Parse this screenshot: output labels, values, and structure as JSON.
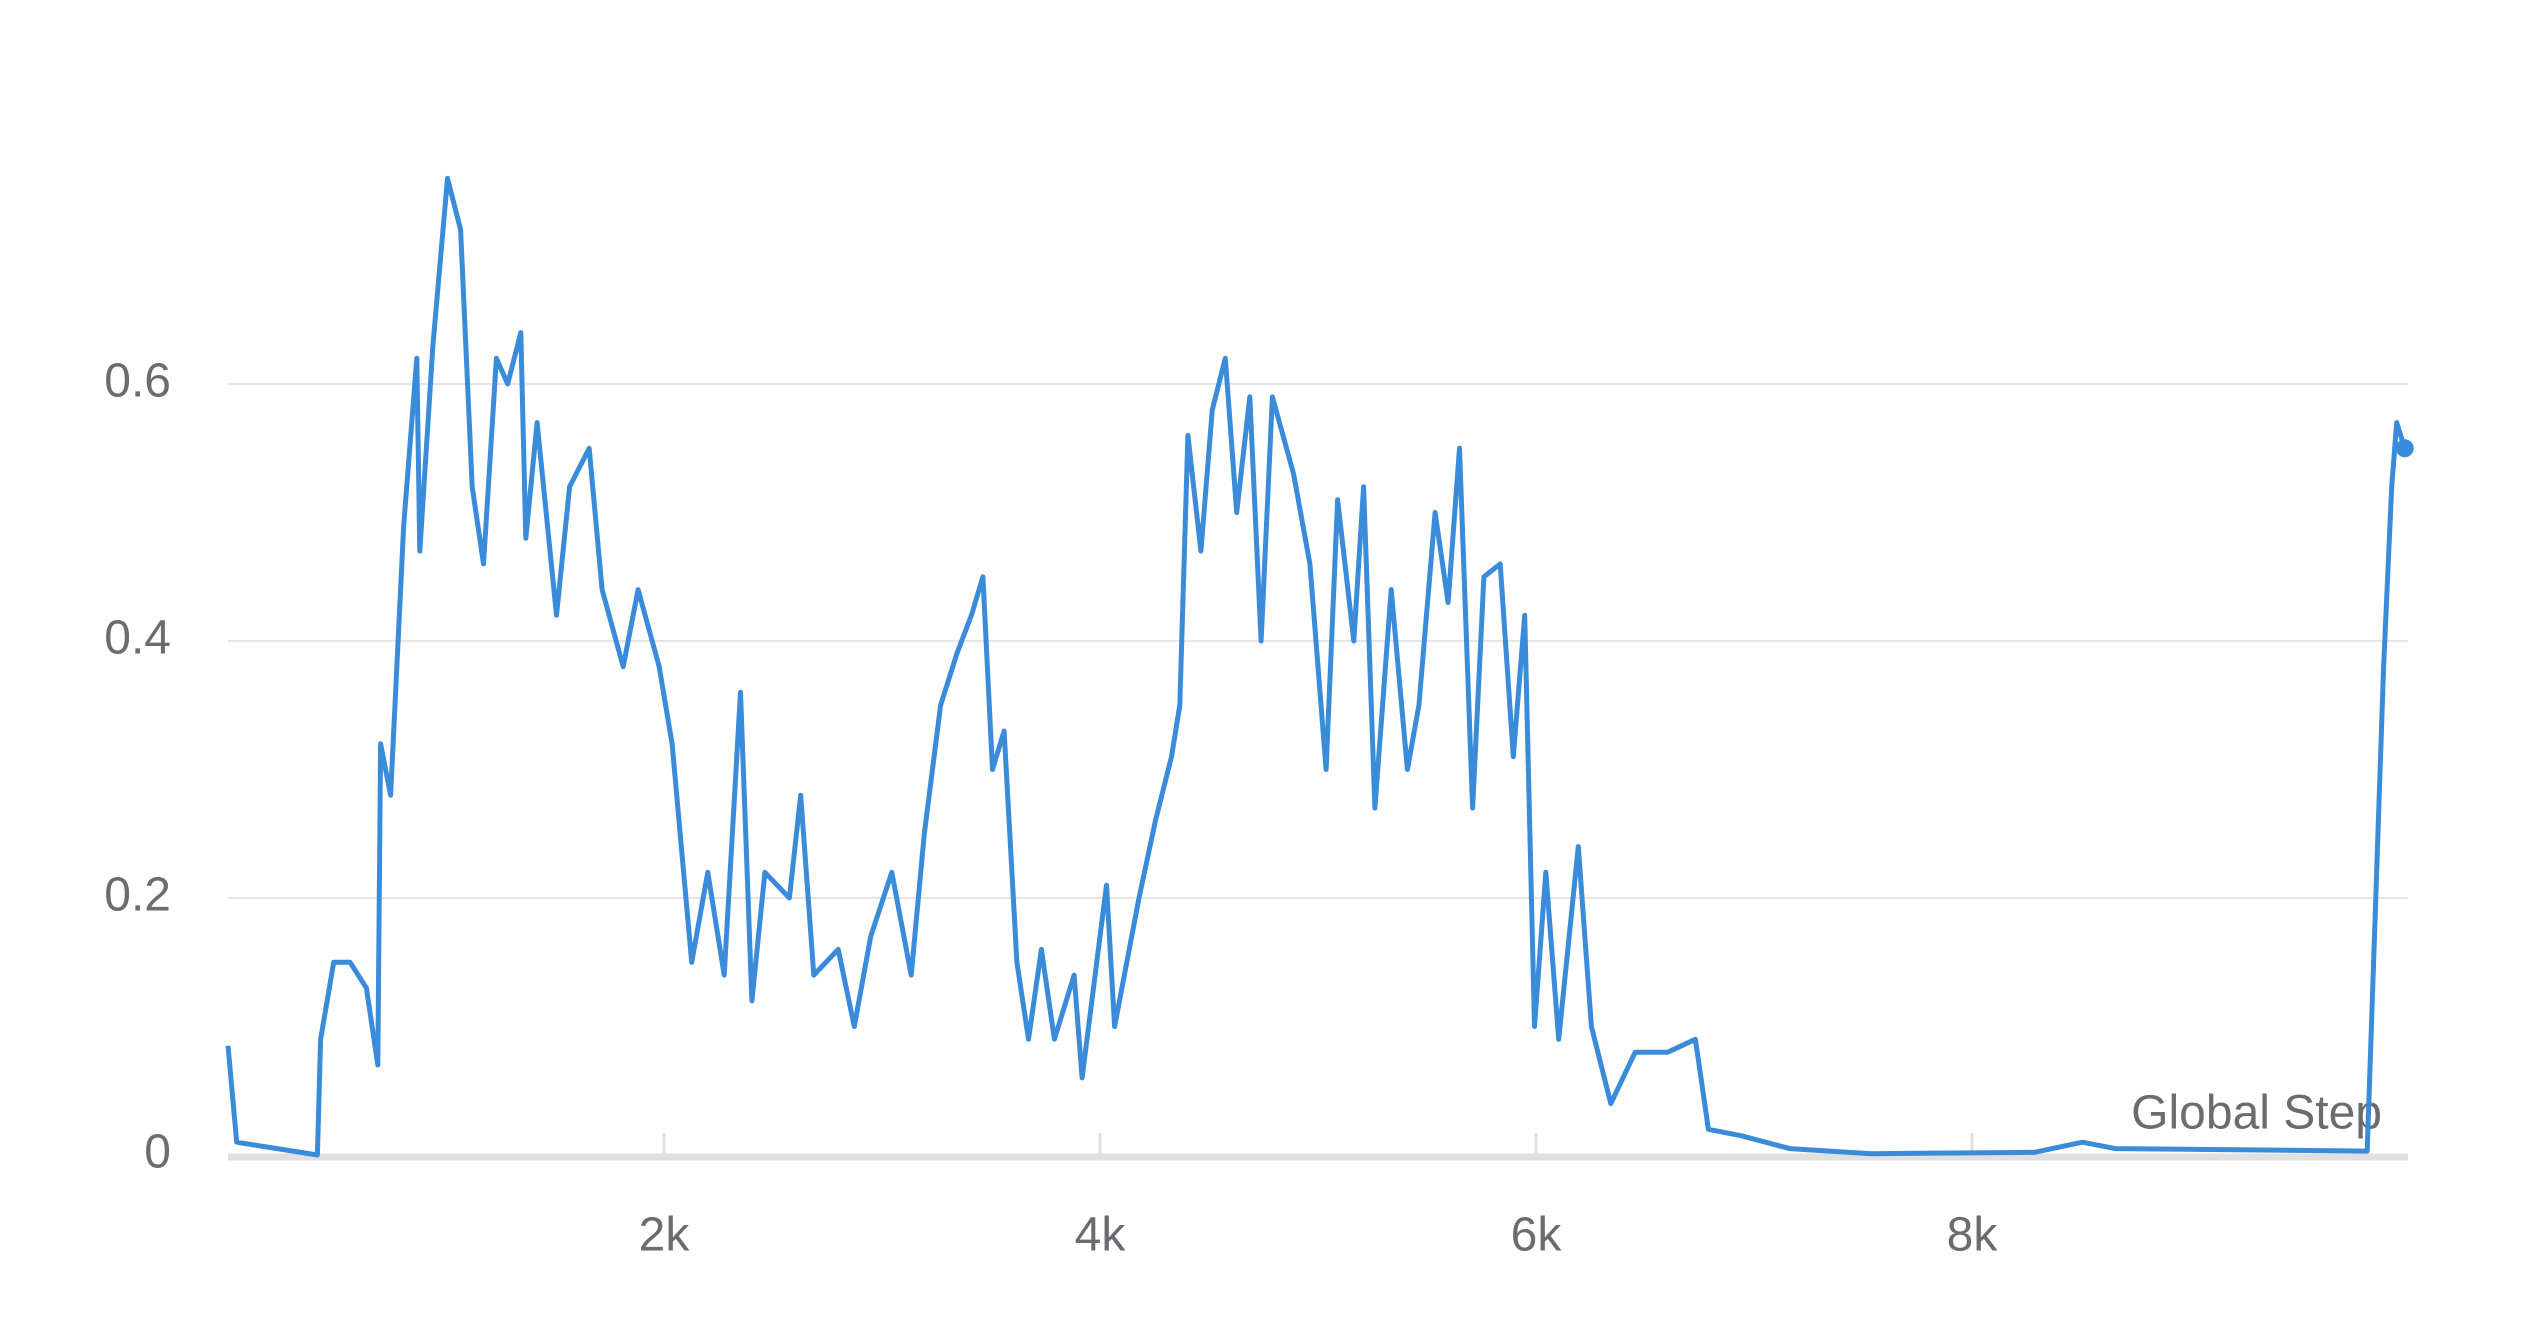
{
  "chart_data": {
    "type": "line",
    "x_label": "Global Step",
    "x": [
      0,
      40,
      410,
      425,
      485,
      560,
      635,
      687,
      700,
      746,
      806,
      866,
      880,
      940,
      1007,
      1067,
      1120,
      1172,
      1231,
      1283,
      1343,
      1366,
      1418,
      1507,
      1567,
      1657,
      1716,
      1813,
      1881,
      1978,
      2037,
      2127,
      2201,
      2276,
      2351,
      2403,
      2463,
      2575,
      2627,
      2687,
      2799,
      2873,
      2948,
      3045,
      3134,
      3194,
      3269,
      3343,
      3410,
      3463,
      3507,
      3560,
      3619,
      3672,
      3731,
      3791,
      3881,
      3918,
      4030,
      4067,
      4179,
      4254,
      4328,
      4366,
      4403,
      4463,
      4515,
      4575,
      4627,
      4687,
      4739,
      4791,
      4888,
      4963,
      5037,
      5090,
      5164,
      5209,
      5261,
      5336,
      5410,
      5463,
      5537,
      5597,
      5649,
      5709,
      5761,
      5836,
      5896,
      5948,
      5993,
      6045,
      6104,
      6194,
      6254,
      6343,
      6455,
      6604,
      6731,
      6791,
      6940,
      7164,
      7537,
      8284,
      8507,
      8657,
      9813,
      9888,
      9925,
      9948,
      9985
    ],
    "series": [
      {
        "color": "#3a8bd9",
        "values": [
          0.085,
          0.01,
          0.0,
          0.09,
          0.15,
          0.15,
          0.13,
          0.07,
          0.32,
          0.28,
          0.49,
          0.62,
          0.47,
          0.63,
          0.76,
          0.72,
          0.52,
          0.46,
          0.62,
          0.6,
          0.64,
          0.48,
          0.57,
          0.42,
          0.52,
          0.55,
          0.44,
          0.38,
          0.44,
          0.38,
          0.32,
          0.15,
          0.22,
          0.14,
          0.36,
          0.12,
          0.22,
          0.2,
          0.28,
          0.14,
          0.16,
          0.1,
          0.17,
          0.22,
          0.14,
          0.25,
          0.35,
          0.39,
          0.42,
          0.45,
          0.3,
          0.33,
          0.15,
          0.09,
          0.16,
          0.09,
          0.14,
          0.06,
          0.21,
          0.1,
          0.2,
          0.26,
          0.31,
          0.35,
          0.56,
          0.47,
          0.58,
          0.62,
          0.5,
          0.59,
          0.4,
          0.59,
          0.53,
          0.46,
          0.3,
          0.51,
          0.4,
          0.52,
          0.27,
          0.44,
          0.3,
          0.35,
          0.5,
          0.43,
          0.55,
          0.27,
          0.45,
          0.46,
          0.31,
          0.42,
          0.1,
          0.22,
          0.09,
          0.24,
          0.1,
          0.04,
          0.08,
          0.08,
          0.09,
          0.02,
          0.015,
          0.005,
          0.001,
          0.002,
          0.01,
          0.005,
          0.003,
          0.38,
          0.52,
          0.57,
          0.55
        ]
      }
    ],
    "xlim": [
      0,
      10000
    ],
    "xticks": [
      {
        "value": 2000,
        "label": "2k"
      },
      {
        "value": 4000,
        "label": "4k"
      },
      {
        "value": 6000,
        "label": "6k"
      },
      {
        "value": 8000,
        "label": "8k"
      }
    ],
    "ylim": [
      0,
      0.8
    ],
    "yticks": [
      0,
      0.2,
      0.4,
      0.6
    ],
    "grid": true
  }
}
